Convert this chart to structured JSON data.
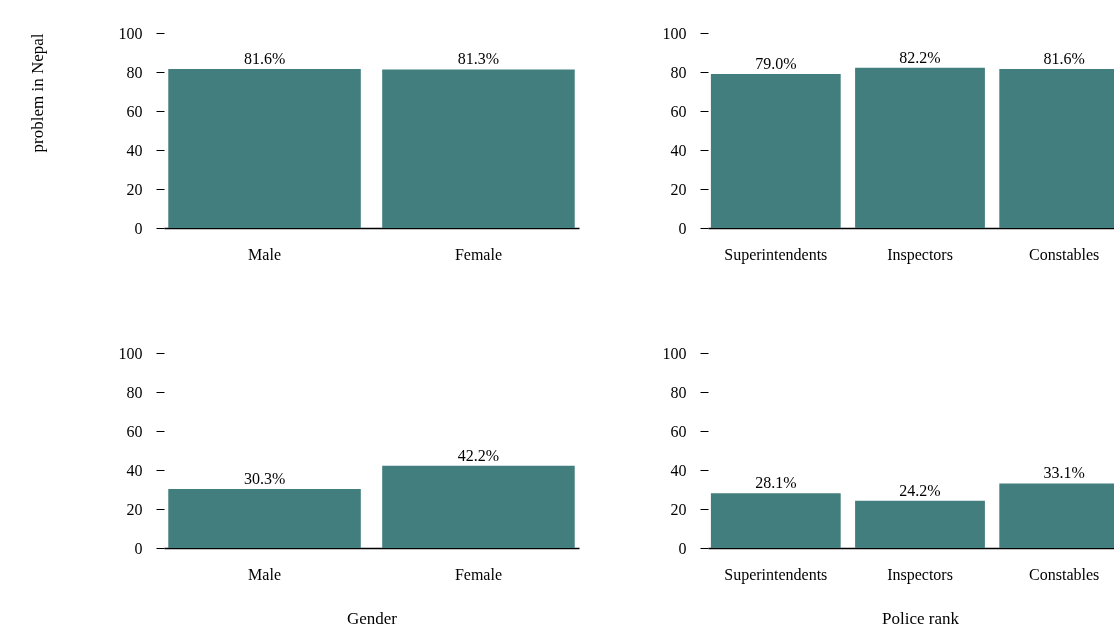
{
  "chart_data": [
    {
      "type": "bar",
      "categories": [
        "Male",
        "Female"
      ],
      "values": [
        81.6,
        81.3
      ],
      "value_labels": [
        "81.6%",
        "81.3%"
      ],
      "color": "#417e7d",
      "ylim": [
        0,
        100
      ],
      "yticks": [
        0,
        20,
        40,
        60,
        80,
        100
      ],
      "ylabel": "problem in Nepal"
    },
    {
      "type": "bar",
      "categories": [
        "Superintendents",
        "Inspectors",
        "Constables"
      ],
      "values": [
        79.0,
        82.2,
        81.6
      ],
      "value_labels": [
        "79.0%",
        "82.2%",
        "81.6%"
      ],
      "color": "#417e7d",
      "ylim": [
        0,
        100
      ],
      "yticks": [
        0,
        20,
        40,
        60,
        80,
        100
      ]
    },
    {
      "type": "bar",
      "categories": [
        "Male",
        "Female"
      ],
      "values": [
        30.3,
        42.2
      ],
      "value_labels": [
        "30.3%",
        "42.2%"
      ],
      "color": "#417e7d",
      "ylim": [
        0,
        100
      ],
      "yticks": [
        0,
        20,
        40,
        60,
        80,
        100
      ],
      "xlabel": "Gender"
    },
    {
      "type": "bar",
      "categories": [
        "Superintendents",
        "Inspectors",
        "Constables"
      ],
      "values": [
        28.1,
        24.2,
        33.1
      ],
      "value_labels": [
        "28.1%",
        "24.2%",
        "33.1%"
      ],
      "color": "#417e7d",
      "ylim": [
        0,
        100
      ],
      "yticks": [
        0,
        20,
        40,
        60,
        80,
        100
      ],
      "xlabel": "Police rank"
    }
  ]
}
